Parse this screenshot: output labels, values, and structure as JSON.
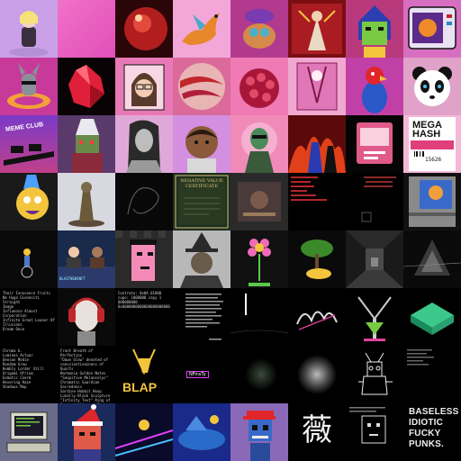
{
  "tiles": [
    {
      "name": "tile-doll-figure",
      "text": ""
    },
    {
      "name": "tile-pink-gradient",
      "text": ""
    },
    {
      "name": "tile-red-cat-orb",
      "text": ""
    },
    {
      "name": "tile-orange-dragon",
      "text": ""
    },
    {
      "name": "tile-mushroom-creature",
      "text": ""
    },
    {
      "name": "tile-red-painting",
      "text": ""
    },
    {
      "name": "tile-pharaoh-zombie",
      "text": ""
    },
    {
      "name": "tile-retro-tv",
      "text": ""
    },
    {
      "name": "tile-donkey-float",
      "text": ""
    },
    {
      "name": "tile-red-crystal",
      "text": ""
    },
    {
      "name": "tile-glasses-woman",
      "text": ""
    },
    {
      "name": "tile-marble-sphere",
      "text": ""
    },
    {
      "name": "tile-pink-brain",
      "text": ""
    },
    {
      "name": "tile-pink-ornate",
      "text": ""
    },
    {
      "name": "tile-parrot-character",
      "text": ""
    },
    {
      "name": "tile-panda",
      "text": ""
    },
    {
      "name": "tile-meme-club",
      "text": "MEME\nCLUB"
    },
    {
      "name": "tile-wizard-pixel",
      "text": ""
    },
    {
      "name": "tile-sketch-portrait",
      "text": ""
    },
    {
      "name": "tile-cartoon-boy",
      "text": ""
    },
    {
      "name": "tile-green-alien",
      "text": ""
    },
    {
      "name": "tile-flame-figures",
      "text": ""
    },
    {
      "name": "tile-pink-device",
      "text": ""
    },
    {
      "name": "tile-mega-hash",
      "text": "MEGA\nHASH",
      "number": "15626"
    },
    {
      "name": "tile-party-creature",
      "text": ""
    },
    {
      "name": "tile-bronze-statue",
      "text": ""
    },
    {
      "name": "tile-dark-swirl",
      "text": ""
    },
    {
      "name": "tile-negative-value-certificate",
      "text": "NEGATIVE VALUE\nCERTIFICATE"
    },
    {
      "name": "tile-dark-machinery",
      "text": ""
    },
    {
      "name": "tile-red-text-list",
      "text": ""
    },
    {
      "name": "tile-dark-square",
      "text": ""
    },
    {
      "name": "tile-game-cartridge",
      "text": ""
    },
    {
      "name": "tile-wheelchair-figure",
      "text": ""
    },
    {
      "name": "tile-news-desk",
      "text": "BLASTNEWSNFT"
    },
    {
      "name": "tile-pink-punk",
      "text": ""
    },
    {
      "name": "tile-ape-witch-hat",
      "text": ""
    },
    {
      "name": "tile-pixel-flower",
      "text": ""
    },
    {
      "name": "tile-bonsai-tree",
      "text": ""
    },
    {
      "name": "tile-dark-room",
      "text": ""
    },
    {
      "name": "tile-glitch-crystal",
      "text": ""
    },
    {
      "name": "tile-text-description",
      "text": "Their Innocence Fruits Ne Huge Gionnoiti Straight\nImage\nInfluence Almost Corporation\nInfinite Great Loaner Of Illusions\nDream Once"
    },
    {
      "name": "tile-red-headphones",
      "text": ""
    },
    {
      "name": "tile-contract-text",
      "text": "Contrato: 0x0A 01000\ncupo: 1000000 copy 1 000000000\n0x0000000000000000000000"
    },
    {
      "name": "tile-code-text",
      "text": ""
    },
    {
      "name": "tile-white-beam",
      "text": ""
    },
    {
      "name": "tile-graffiti-tag",
      "text": ""
    },
    {
      "name": "tile-green-y-shape",
      "text": ""
    },
    {
      "name": "tile-green-stones",
      "text": ""
    },
    {
      "name": "tile-stats-list",
      "text": "Chroma b.\nLuminas Actuar\nDensan Modie\nRandom Grow\nHumbly Lorder Still\nOrigami Ofrium\nExmatic Coerm\nHovering Haze\nShadows Map"
    },
    {
      "name": "tile-prose-text",
      "text": "Front Breath of Perfection\n\"Dawn Glow\" denoted of conscientiousness of Quarts\nHarmonia Golden Notes\n\"Sequitive Melancolyc\"\nChromatic Guardian Sacredness\nSardine Hobbit Hoop\nLunally Black Sculpture\n\"Infinity Text\" Ring of Invincibility of Rings"
    },
    {
      "name": "tile-blap-chain",
      "text": "BLAP"
    },
    {
      "name": "tile-nfinity",
      "text": "NFinsTy"
    },
    {
      "name": "tile-dark-orb",
      "text": ""
    },
    {
      "name": "tile-gray-noise-sphere",
      "text": ""
    },
    {
      "name": "tile-line-drawing",
      "text": ""
    },
    {
      "name": "tile-dark-list",
      "text": ""
    },
    {
      "name": "tile-retro-computer",
      "text": ""
    },
    {
      "name": "tile-santa-pirate",
      "text": ""
    },
    {
      "name": "tile-neon-ride",
      "text": ""
    },
    {
      "name": "tile-blue-landscape",
      "text": ""
    },
    {
      "name": "tile-skeleton-cap",
      "text": ""
    },
    {
      "name": "tile-kanji",
      "text": "薇"
    },
    {
      "name": "tile-pixel-face-sketch",
      "text": ""
    },
    {
      "name": "tile-baseless-punks",
      "text": "BASELESS\nIDIOTIC\nFUCKY\nPUNKS."
    }
  ],
  "colors": {
    "pink": "#e879c9",
    "magenta": "#b43a9a",
    "black": "#000000",
    "gold": "#f3c53c",
    "green": "#7ac943",
    "red": "#c0262b"
  }
}
